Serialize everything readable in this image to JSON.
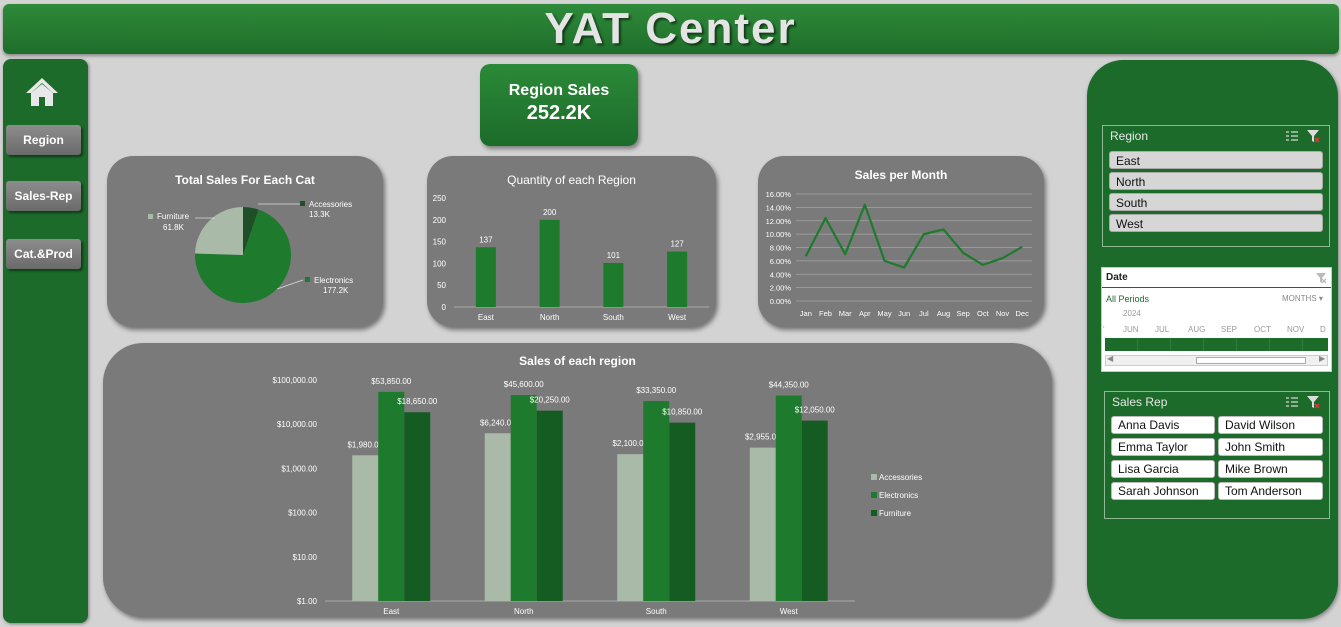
{
  "header": {
    "title": "YAT Center"
  },
  "sidebar": {
    "home_icon": "home-icon",
    "items": [
      {
        "label": "Region"
      },
      {
        "label": "Sales-Rep"
      },
      {
        "label": "Cat.&Prod"
      }
    ]
  },
  "kpi": {
    "label": "Region Sales",
    "value": "252.2K"
  },
  "colors": {
    "dark_green": "#1c6b2a",
    "green": "#1d7a2b",
    "light_gray_green": "#a9bba8",
    "panel_gray": "#7a7a7a",
    "background": "#d3d3d3"
  },
  "slicers": {
    "region": {
      "title": "Region",
      "items": [
        "East",
        "North",
        "South",
        "West"
      ],
      "icons": [
        "multi-select-icon",
        "clear-filter-icon"
      ]
    },
    "date": {
      "title": "Date",
      "all_periods": "All Periods",
      "level": "MONTHS",
      "year": "2024",
      "months": [
        "JUN",
        "JUL",
        "AUG",
        "SEP",
        "OCT",
        "NOV",
        "D"
      ],
      "icons": [
        "clear-filter-icon",
        "chevron-down-icon"
      ]
    },
    "sales_rep": {
      "title": "Sales Rep",
      "items": [
        "Anna Davis",
        "David Wilson",
        "Emma Taylor",
        "John Smith",
        "Lisa Garcia",
        "Mike Brown",
        "Sarah Johnson",
        "Tom Anderson"
      ],
      "icons": [
        "multi-select-icon",
        "clear-filter-icon"
      ]
    }
  },
  "chart_data": [
    {
      "type": "pie",
      "title": "Total Sales For Each Cat",
      "categories": [
        "Accessories",
        "Electronics",
        "Furniture"
      ],
      "values": [
        13.3,
        177.2,
        61.8
      ],
      "data_labels": [
        "Accessories,\n13.3K",
        "Electronics,\n177.2K",
        "Furniture,\n61.8K"
      ],
      "colors": [
        "#1f4f28",
        "#1e7a2c",
        "#a9bba8"
      ]
    },
    {
      "type": "bar",
      "title": "Quantity of each Region",
      "categories": [
        "East",
        "North",
        "South",
        "West"
      ],
      "values": [
        137,
        200,
        101,
        127
      ],
      "ylim": [
        0,
        250
      ],
      "yticks": [
        0,
        50,
        100,
        150,
        200,
        250
      ],
      "grid": false
    },
    {
      "type": "line",
      "title": "Sales per Month",
      "categories": [
        "Jan",
        "Feb",
        "Mar",
        "Apr",
        "May",
        "Jun",
        "Jul",
        "Aug",
        "Sep",
        "Oct",
        "Nov",
        "Dec"
      ],
      "values": [
        6.7,
        12.4,
        7.0,
        14.4,
        6.0,
        5.0,
        10.0,
        10.7,
        7.2,
        5.4,
        6.4,
        8.1
      ],
      "ylim": [
        0,
        16
      ],
      "yticks": [
        "0.00%",
        "2.00%",
        "4.00%",
        "6.00%",
        "8.00%",
        "10.00%",
        "12.00%",
        "14.00%",
        "16.00%"
      ],
      "grid": true
    },
    {
      "type": "bar",
      "title": "Sales of each region",
      "y_scale": "log",
      "ylim": [
        1,
        100000
      ],
      "yticks": [
        "$1.00",
        "$10.00",
        "$100.00",
        "$1,000.00",
        "$10,000.00",
        "$100,000.00"
      ],
      "categories": [
        "East",
        "North",
        "South",
        "West"
      ],
      "series": [
        {
          "name": "Accessories",
          "values": [
            1980,
            6240,
            2100,
            2955
          ],
          "labels": [
            "$1,980.00",
            "$6,240.00",
            "$2,100.00",
            "$2,955.00"
          ],
          "color": "#a9bba8"
        },
        {
          "name": "Electronics",
          "values": [
            53850,
            45600,
            33350,
            44350
          ],
          "labels": [
            "$53,850.00",
            "$45,600.00",
            "$33,350.00",
            "$44,350.00"
          ],
          "color": "#1e7a2c"
        },
        {
          "name": "Furniture",
          "values": [
            18650,
            20250,
            10850,
            12050
          ],
          "labels": [
            "$18,650.00",
            "$20,250.00",
            "$10,850.00",
            "$12,050.00"
          ],
          "color": "#145c21"
        }
      ],
      "legend": "right"
    }
  ]
}
